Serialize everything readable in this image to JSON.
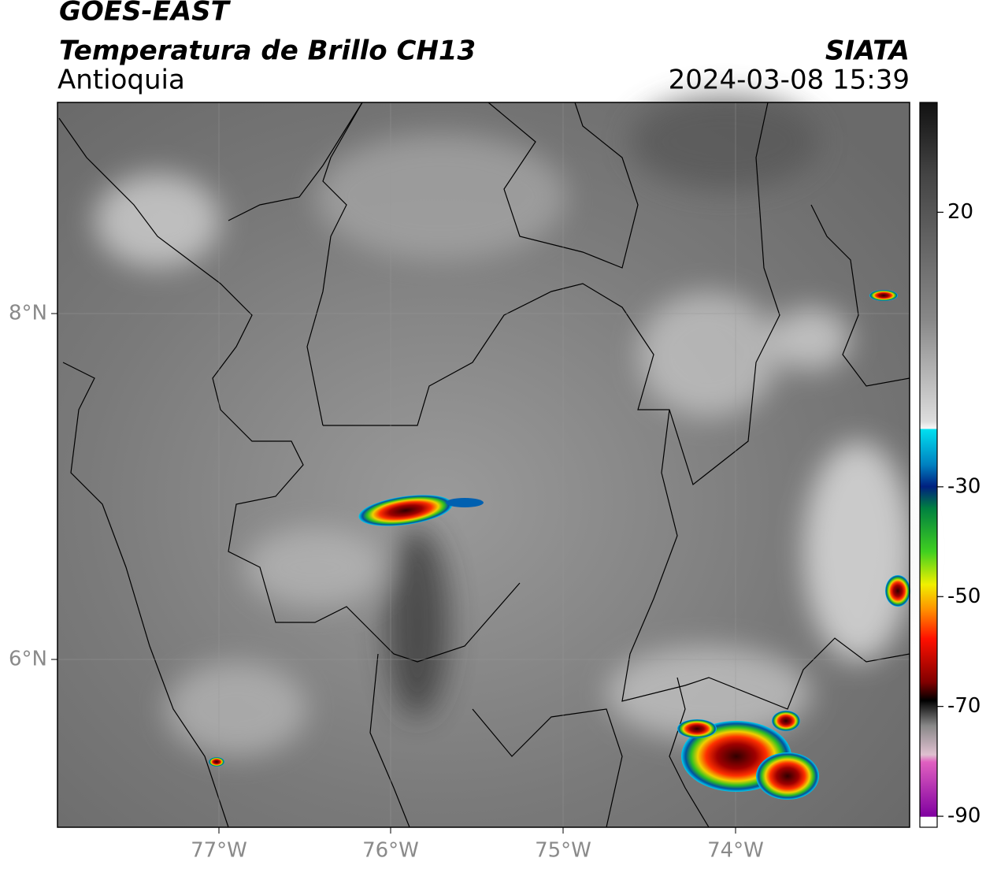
{
  "header": {
    "title": "GOES-EAST",
    "subtitle": "Temperatura de Brillo CH13",
    "region": "Antioquia",
    "source": "SIATA",
    "timestamp": "2024-03-08 15:39"
  },
  "map": {
    "lat_labels": [
      "8°N",
      "6°N"
    ],
    "lon_labels": [
      "77°W",
      "76°W",
      "75°W",
      "74°W"
    ]
  },
  "colorbar": {
    "lim": [
      40,
      -92
    ],
    "ticks": [
      20,
      -30,
      -50,
      -70,
      -90
    ]
  }
}
